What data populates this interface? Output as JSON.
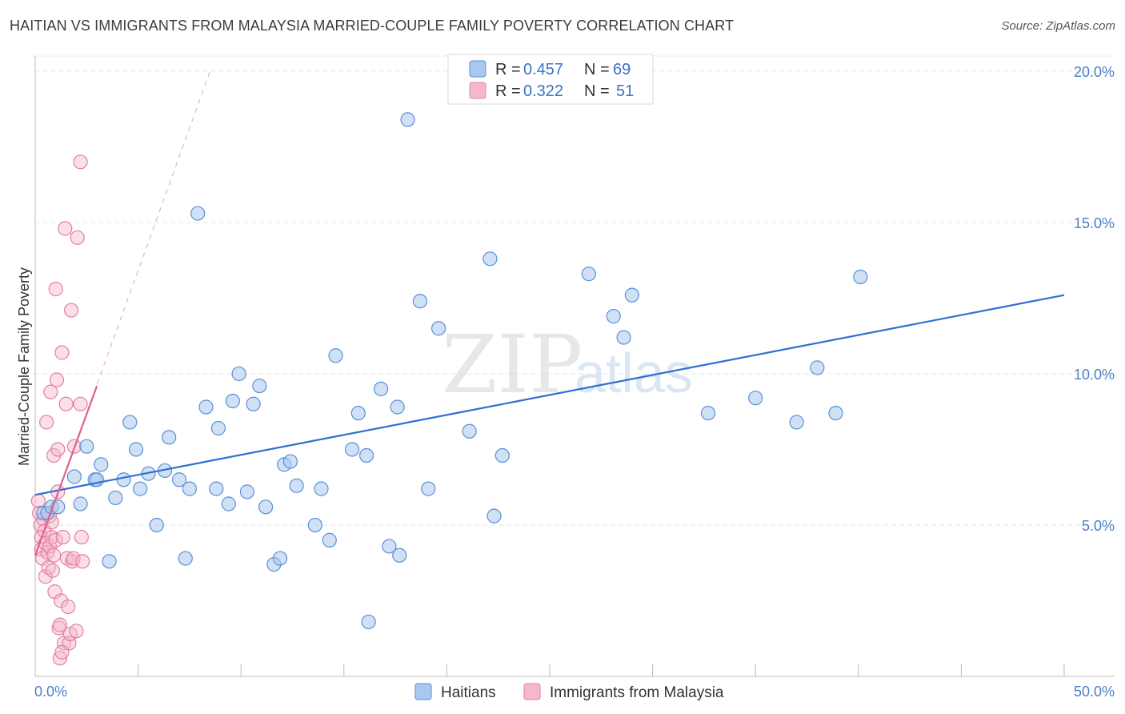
{
  "title": "HAITIAN VS IMMIGRANTS FROM MALAYSIA MARRIED-COUPLE FAMILY POVERTY CORRELATION CHART",
  "source": "Source: ZipAtlas.com",
  "watermark": {
    "zip": "ZIP",
    "atlas": "atlas"
  },
  "colors": {
    "haitians_fill": "#a9c8ef",
    "haitians_stroke": "#5b8fd6",
    "haitians_line": "#2f6fd1",
    "malaysia_fill": "#f5b8cb",
    "malaysia_stroke": "#e47fa0",
    "malaysia_line": "#e0608c",
    "grid": "#e3e3e3",
    "tick_label": "#4a7fc9"
  },
  "legend": {
    "rows": [
      {
        "r_label": "R =",
        "r_value": "0.457",
        "n_label": "N =",
        "n_value": "69"
      },
      {
        "r_label": "R =",
        "r_value": "0.322",
        "n_label": "N =",
        "n_value": "51"
      }
    ]
  },
  "chart_data": {
    "type": "scatter",
    "title": "HAITIAN VS IMMIGRANTS FROM MALAYSIA MARRIED-COUPLE FAMILY POVERTY CORRELATION CHART",
    "xlabel": "",
    "ylabel": "Married-Couple Family Poverty",
    "xlim": [
      0,
      50
    ],
    "ylim": [
      0,
      20.5
    ],
    "x_tick_labels": {
      "left": "0.0%",
      "right": "50.0%"
    },
    "y_ticks": [
      {
        "value": 5,
        "label": "5.0%"
      },
      {
        "value": 10,
        "label": "10.0%"
      },
      {
        "value": 15,
        "label": "15.0%"
      },
      {
        "value": 20,
        "label": "20.0%"
      }
    ],
    "legend_position": "top-center",
    "series": [
      {
        "name": "Haitians",
        "R": 0.457,
        "N": 69,
        "trend": {
          "x": [
            0,
            50
          ],
          "y": [
            6.0,
            12.6
          ],
          "style": "solid"
        },
        "points": [
          [
            0.4,
            5.4
          ],
          [
            0.6,
            5.4
          ],
          [
            0.8,
            5.6
          ],
          [
            1.1,
            5.6
          ],
          [
            1.9,
            6.6
          ],
          [
            2.2,
            5.7
          ],
          [
            2.5,
            7.6
          ],
          [
            2.9,
            6.5
          ],
          [
            3.0,
            6.5
          ],
          [
            3.2,
            7.0
          ],
          [
            3.6,
            3.8
          ],
          [
            3.9,
            5.9
          ],
          [
            4.3,
            6.5
          ],
          [
            4.6,
            8.4
          ],
          [
            4.9,
            7.5
          ],
          [
            5.1,
            6.2
          ],
          [
            5.5,
            6.7
          ],
          [
            5.9,
            5.0
          ],
          [
            6.3,
            6.8
          ],
          [
            6.5,
            7.9
          ],
          [
            7.0,
            6.5
          ],
          [
            7.3,
            3.9
          ],
          [
            7.5,
            6.2
          ],
          [
            7.9,
            15.3
          ],
          [
            8.3,
            8.9
          ],
          [
            8.8,
            6.2
          ],
          [
            8.9,
            8.2
          ],
          [
            9.4,
            5.7
          ],
          [
            9.6,
            9.1
          ],
          [
            9.9,
            10.0
          ],
          [
            10.3,
            6.1
          ],
          [
            10.6,
            9.0
          ],
          [
            10.9,
            9.6
          ],
          [
            11.2,
            5.6
          ],
          [
            11.6,
            3.7
          ],
          [
            11.9,
            3.9
          ],
          [
            12.1,
            7.0
          ],
          [
            12.4,
            7.1
          ],
          [
            12.7,
            6.3
          ],
          [
            13.6,
            5.0
          ],
          [
            13.9,
            6.2
          ],
          [
            14.3,
            4.5
          ],
          [
            14.6,
            10.6
          ],
          [
            15.4,
            7.5
          ],
          [
            15.7,
            8.7
          ],
          [
            16.1,
            7.3
          ],
          [
            16.2,
            1.8
          ],
          [
            16.8,
            9.5
          ],
          [
            17.2,
            4.3
          ],
          [
            17.6,
            8.9
          ],
          [
            17.7,
            4.0
          ],
          [
            18.1,
            18.4
          ],
          [
            18.7,
            12.4
          ],
          [
            19.1,
            6.2
          ],
          [
            19.6,
            11.5
          ],
          [
            21.1,
            8.1
          ],
          [
            22.3,
            5.3
          ],
          [
            22.1,
            13.8
          ],
          [
            22.7,
            7.3
          ],
          [
            26.9,
            13.3
          ],
          [
            28.1,
            11.9
          ],
          [
            28.6,
            11.2
          ],
          [
            29.0,
            12.6
          ],
          [
            32.7,
            8.7
          ],
          [
            35.0,
            9.2
          ],
          [
            37.0,
            8.4
          ],
          [
            38.0,
            10.2
          ],
          [
            38.9,
            8.7
          ],
          [
            40.1,
            13.2
          ]
        ]
      },
      {
        "name": "Immigrants from Malaysia",
        "R": 0.322,
        "N": 51,
        "trend": {
          "x": [
            0,
            3.0
          ],
          "y": [
            4.0,
            9.6
          ],
          "style": "solid",
          "extended": {
            "x": [
              0,
              8.5
            ],
            "y": [
              4.0,
              20.0
            ],
            "style": "dashed"
          }
        },
        "points": [
          [
            0.15,
            5.8
          ],
          [
            0.2,
            5.4
          ],
          [
            0.25,
            5.0
          ],
          [
            0.3,
            4.6
          ],
          [
            0.3,
            4.2
          ],
          [
            0.35,
            3.9
          ],
          [
            0.4,
            5.2
          ],
          [
            0.45,
            4.8
          ],
          [
            0.5,
            4.4
          ],
          [
            0.5,
            3.3
          ],
          [
            0.55,
            8.4
          ],
          [
            0.6,
            4.1
          ],
          [
            0.65,
            3.6
          ],
          [
            0.7,
            5.3
          ],
          [
            0.7,
            4.3
          ],
          [
            0.75,
            9.4
          ],
          [
            0.8,
            5.1
          ],
          [
            0.8,
            4.6
          ],
          [
            0.85,
            3.5
          ],
          [
            0.9,
            7.3
          ],
          [
            0.9,
            4.0
          ],
          [
            0.95,
            2.8
          ],
          [
            1.0,
            12.8
          ],
          [
            1.0,
            4.5
          ],
          [
            1.05,
            9.8
          ],
          [
            1.1,
            7.5
          ],
          [
            1.1,
            6.1
          ],
          [
            1.15,
            1.6
          ],
          [
            1.2,
            1.7
          ],
          [
            1.2,
            0.6
          ],
          [
            1.25,
            2.5
          ],
          [
            1.3,
            10.7
          ],
          [
            1.35,
            4.6
          ],
          [
            1.4,
            1.1
          ],
          [
            1.45,
            14.8
          ],
          [
            1.5,
            9.0
          ],
          [
            1.55,
            3.9
          ],
          [
            1.6,
            2.3
          ],
          [
            1.65,
            1.1
          ],
          [
            1.7,
            1.4
          ],
          [
            1.75,
            12.1
          ],
          [
            1.8,
            3.8
          ],
          [
            1.85,
            3.9
          ],
          [
            1.9,
            7.6
          ],
          [
            2.0,
            1.5
          ],
          [
            2.05,
            14.5
          ],
          [
            2.2,
            9.0
          ],
          [
            2.25,
            4.6
          ],
          [
            2.3,
            3.8
          ],
          [
            2.2,
            17.0
          ],
          [
            1.3,
            0.8
          ]
        ]
      }
    ]
  }
}
